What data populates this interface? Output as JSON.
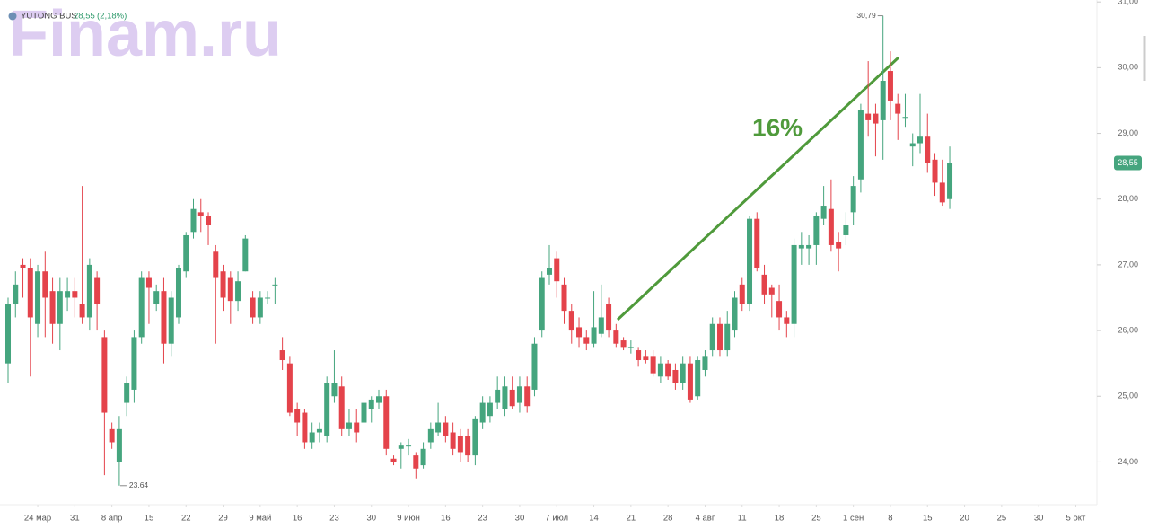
{
  "chart_data": {
    "type": "candlestick",
    "title": "YUTONG BUS",
    "price": "28,55",
    "change": "(2,18%)",
    "watermark": "Finam.ru",
    "annotation": "16%",
    "up_color": "#45a57e",
    "down_color": "#e4434b",
    "x": [
      0,
      1,
      2,
      3,
      4,
      5,
      6,
      7,
      8,
      9,
      10,
      11,
      12,
      13,
      14,
      15,
      16,
      17,
      18,
      19,
      20,
      21,
      22,
      23,
      24,
      25,
      26,
      27,
      28,
      29,
      30,
      31,
      32,
      33,
      34,
      35,
      36,
      37,
      38,
      39,
      40,
      41,
      42,
      43,
      44,
      45,
      46,
      47,
      48,
      49,
      50,
      51,
      52,
      53,
      54,
      55,
      56,
      57,
      58,
      59,
      60,
      61,
      62,
      63,
      64,
      65,
      66,
      67,
      68,
      69,
      70,
      71,
      72,
      73,
      74,
      75,
      76,
      77,
      78,
      79,
      80,
      81,
      82,
      83,
      84,
      85,
      86,
      87,
      88,
      89,
      90,
      91,
      92,
      93,
      94,
      95,
      96,
      97,
      98,
      99,
      100,
      101,
      102,
      103,
      104,
      105,
      106,
      107,
      108,
      109,
      110,
      111,
      112,
      113,
      114,
      115,
      116,
      117,
      118,
      119,
      120,
      121,
      122,
      123,
      124,
      125,
      126,
      127
    ],
    "open": [
      25.5,
      26.4,
      27.0,
      26.95,
      26.1,
      26.9,
      26.6,
      26.1,
      26.5,
      26.6,
      26.4,
      26.2,
      26.8,
      25.9,
      24.5,
      24.0,
      24.9,
      25.1,
      25.9,
      26.8,
      26.4,
      26.6,
      25.8,
      26.2,
      26.9,
      27.5,
      27.8,
      27.75,
      27.2,
      26.9,
      26.8,
      26.45,
      26.9,
      26.5,
      26.2,
      26.5,
      26.7,
      25.7,
      25.5,
      24.8,
      24.75,
      24.3,
      24.45,
      24.4,
      25.0,
      25.15,
      24.5,
      24.6,
      24.6,
      24.8,
      24.9,
      25.0,
      24.05,
      24.2,
      24.25,
      24.1,
      23.95,
      24.3,
      24.45,
      24.6,
      24.45,
      24.4,
      24.4,
      24.1,
      24.6,
      24.7,
      24.9,
      24.8,
      25.1,
      24.9,
      25.15,
      25.1,
      26.0,
      26.85,
      27.1,
      26.7,
      26.3,
      26.05,
      25.9,
      25.8,
      25.95,
      26.4,
      26.0,
      25.85,
      25.75,
      25.7,
      25.6,
      25.6,
      25.3,
      25.5,
      25.4,
      25.2,
      25.5,
      25.0,
      25.4,
      25.7,
      26.1,
      25.7,
      26.0,
      26.7,
      26.4,
      27.7,
      26.85,
      26.65,
      26.45,
      26.2,
      26.1,
      27.25,
      27.25,
      27.3,
      27.7,
      27.85,
      27.35,
      27.45,
      27.8,
      28.3,
      29.3,
      29.3,
      29.2,
      29.95,
      29.45,
      29.25,
      28.8,
      28.85,
      28.95,
      28.6,
      28.25,
      28.0
    ],
    "high": [
      26.5,
      26.9,
      27.1,
      27.1,
      27.0,
      27.2,
      26.8,
      26.8,
      26.8,
      26.8,
      28.2,
      27.1,
      26.9,
      26.0,
      24.6,
      24.7,
      25.3,
      26.0,
      26.9,
      26.9,
      26.7,
      26.8,
      26.6,
      27.0,
      27.5,
      28.0,
      28.0,
      27.8,
      27.3,
      27.0,
      26.9,
      26.9,
      27.45,
      26.6,
      26.6,
      26.6,
      26.8,
      25.9,
      25.6,
      24.9,
      24.8,
      24.6,
      24.6,
      25.3,
      25.7,
      25.3,
      24.8,
      24.8,
      25.0,
      25.0,
      25.1,
      25.1,
      24.1,
      24.3,
      24.35,
      24.15,
      24.3,
      24.6,
      24.9,
      24.7,
      24.6,
      24.5,
      24.5,
      24.7,
      25.0,
      25.0,
      25.3,
      25.3,
      25.3,
      25.3,
      25.3,
      25.9,
      26.9,
      27.3,
      27.2,
      26.8,
      26.4,
      26.2,
      26.0,
      26.6,
      26.7,
      26.5,
      26.1,
      25.9,
      25.85,
      25.75,
      25.7,
      25.7,
      25.6,
      25.55,
      25.5,
      25.6,
      25.6,
      25.6,
      25.7,
      26.2,
      26.2,
      26.3,
      26.6,
      26.8,
      27.75,
      27.8,
      27.0,
      26.7,
      26.7,
      26.3,
      27.4,
      27.5,
      27.45,
      27.8,
      28.2,
      28.3,
      27.5,
      27.8,
      28.35,
      29.45,
      30.1,
      29.45,
      30.79,
      30.25,
      29.6,
      29.6,
      29.0,
      29.6,
      29.3,
      28.7,
      28.6,
      28.8
    ],
    "low": [
      25.2,
      26.2,
      26.5,
      25.3,
      25.9,
      25.9,
      25.8,
      25.7,
      26.3,
      26.2,
      26.1,
      26.0,
      26.0,
      23.8,
      24.2,
      23.64,
      24.7,
      24.9,
      25.8,
      26.1,
      26.3,
      25.5,
      25.6,
      26.1,
      26.8,
      27.4,
      27.5,
      27.3,
      25.8,
      26.3,
      26.1,
      26.3,
      26.9,
      26.1,
      26.1,
      26.4,
      26.4,
      25.4,
      24.7,
      24.4,
      24.2,
      24.2,
      24.3,
      24.3,
      24.9,
      24.4,
      24.4,
      24.3,
      24.5,
      24.6,
      24.8,
      24.1,
      23.95,
      23.9,
      24.1,
      23.75,
      23.9,
      24.2,
      24.4,
      24.3,
      24.1,
      24.0,
      24.0,
      23.95,
      24.5,
      24.6,
      24.8,
      24.7,
      24.8,
      24.75,
      24.75,
      25.0,
      25.9,
      26.7,
      26.5,
      26.1,
      25.8,
      25.75,
      25.7,
      25.75,
      25.9,
      25.9,
      25.75,
      25.7,
      25.65,
      25.45,
      25.5,
      25.3,
      25.2,
      25.25,
      25.1,
      25.1,
      24.9,
      24.95,
      25.3,
      25.6,
      25.6,
      25.6,
      25.9,
      26.3,
      26.3,
      26.9,
      26.4,
      26.2,
      26.0,
      25.9,
      25.9,
      27.0,
      27.0,
      27.0,
      27.6,
      27.2,
      26.9,
      27.3,
      27.6,
      28.1,
      28.95,
      28.65,
      28.6,
      29.2,
      28.9,
      29.1,
      28.5,
      28.7,
      28.4,
      28.05,
      27.9,
      27.85
    ],
    "close": [
      26.4,
      26.7,
      26.95,
      26.2,
      26.9,
      26.5,
      26.1,
      26.6,
      26.6,
      26.5,
      26.2,
      27.0,
      26.4,
      24.75,
      24.3,
      24.5,
      25.2,
      25.9,
      26.8,
      26.65,
      26.6,
      25.8,
      26.5,
      26.95,
      27.45,
      27.85,
      27.75,
      27.6,
      26.8,
      26.5,
      26.45,
      26.75,
      27.4,
      26.2,
      26.5,
      26.5,
      26.7,
      25.55,
      24.75,
      24.6,
      24.3,
      24.45,
      24.5,
      25.2,
      25.2,
      24.5,
      24.6,
      24.45,
      24.9,
      24.95,
      25.0,
      24.2,
      24.0,
      24.25,
      24.25,
      23.9,
      24.2,
      24.5,
      24.6,
      24.4,
      24.2,
      24.15,
      24.1,
      24.65,
      24.9,
      24.9,
      25.1,
      25.15,
      24.85,
      25.15,
      24.85,
      25.8,
      26.8,
      26.95,
      26.75,
      26.3,
      26.0,
      25.9,
      25.8,
      26.05,
      26.2,
      26.0,
      25.8,
      25.75,
      25.75,
      25.55,
      25.55,
      25.35,
      25.5,
      25.3,
      25.2,
      25.5,
      24.95,
      25.55,
      25.6,
      26.1,
      25.7,
      26.1,
      26.5,
      26.4,
      27.7,
      26.95,
      26.55,
      26.55,
      26.2,
      26.1,
      27.3,
      27.3,
      27.3,
      27.75,
      27.9,
      27.3,
      27.25,
      27.6,
      28.2,
      29.35,
      29.2,
      29.15,
      29.8,
      29.5,
      29.3,
      29.25,
      28.85,
      28.95,
      28.55,
      28.25,
      27.95,
      28.55
    ],
    "high_label": {
      "value": 30.79,
      "label": "30,79"
    },
    "low_label": {
      "value": 23.64,
      "label": "23,64"
    },
    "last_price": {
      "value": 28.55,
      "label": "28,55"
    },
    "xlim": [
      -1.09,
      146.85
    ],
    "ylim": [
      23.35,
      31.03
    ],
    "yticks": [
      {
        "value": 24,
        "label": "24,00"
      },
      {
        "value": 25,
        "label": "25,00"
      },
      {
        "value": 26,
        "label": "26,00"
      },
      {
        "value": 27,
        "label": "27,00"
      },
      {
        "value": 28,
        "label": "28,00"
      },
      {
        "value": 29,
        "label": "29,00"
      },
      {
        "value": 30,
        "label": "30,00"
      },
      {
        "value": 31,
        "label": "31,00"
      }
    ],
    "xticks": [
      {
        "value": 4,
        "label": "24 мар"
      },
      {
        "value": 9,
        "label": "31"
      },
      {
        "value": 14,
        "label": "8 апр"
      },
      {
        "value": 19,
        "label": "15"
      },
      {
        "value": 24,
        "label": "22"
      },
      {
        "value": 29,
        "label": "29"
      },
      {
        "value": 34,
        "label": "9 май"
      },
      {
        "value": 39,
        "label": "16"
      },
      {
        "value": 44,
        "label": "23"
      },
      {
        "value": 49,
        "label": "30"
      },
      {
        "value": 54,
        "label": "9 июн"
      },
      {
        "value": 59,
        "label": "16"
      },
      {
        "value": 64,
        "label": "23"
      },
      {
        "value": 69,
        "label": "30"
      },
      {
        "value": 74,
        "label": "7 июл"
      },
      {
        "value": 79,
        "label": "14"
      },
      {
        "value": 84,
        "label": "21"
      },
      {
        "value": 89,
        "label": "28"
      },
      {
        "value": 94,
        "label": "4 авг"
      },
      {
        "value": 99,
        "label": "11"
      },
      {
        "value": 104,
        "label": "18"
      },
      {
        "value": 109,
        "label": "25"
      },
      {
        "value": 114,
        "label": "1 сен"
      },
      {
        "value": 119,
        "label": "8"
      },
      {
        "value": 124,
        "label": "15"
      },
      {
        "value": 129,
        "label": "20"
      },
      {
        "value": 134,
        "label": "25"
      },
      {
        "value": 139,
        "label": "30"
      },
      {
        "value": 144,
        "label": "5 окт"
      }
    ]
  }
}
